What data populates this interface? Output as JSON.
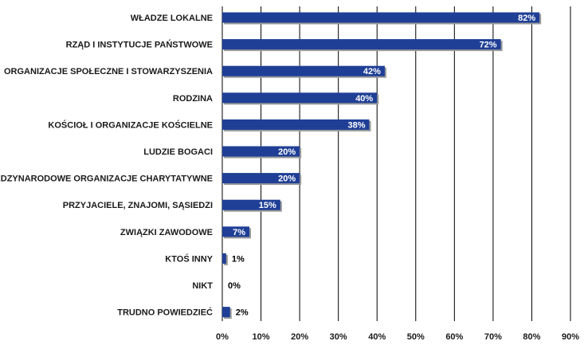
{
  "chart_data": {
    "type": "bar",
    "orientation": "horizontal",
    "categories": [
      "WŁADZE LOKALNE",
      "RZĄD I INSTYTUCJE PAŃSTWOWE",
      "ORGANIZACJE SPOŁECZNE I STOWARZYSZENIA",
      "RODZINA",
      "KOŚCIOŁ I ORGANIZACJE KOŚCIELNE",
      "LUDZIE BOGACI",
      "MIĘDZYNARODOWE ORGANIZACJE CHARYTATYWNE",
      "PRZYJACIELE, ZNAJOMI, SĄSIEDZI",
      "ZWIĄZKI ZAWODOWE",
      "KTOŚ INNY",
      "NIKT",
      "TRUDNO POWIEDZIEĆ"
    ],
    "values": [
      82,
      72,
      42,
      40,
      38,
      20,
      20,
      15,
      7,
      1,
      0,
      2
    ],
    "value_labels": [
      "82%",
      "72%",
      "42%",
      "40%",
      "38%",
      "20%",
      "20%",
      "15%",
      "7%",
      "1%",
      "0%",
      "2%"
    ],
    "xlim": [
      0,
      90
    ],
    "x_ticks": [
      "0%",
      "10%",
      "20%",
      "30%",
      "40%",
      "50%",
      "60%",
      "70%",
      "80%",
      "90%"
    ],
    "grid": true,
    "colors": {
      "bar": "#1f3f96",
      "shadow": "#9a9a9a",
      "grid": "#000000"
    }
  }
}
